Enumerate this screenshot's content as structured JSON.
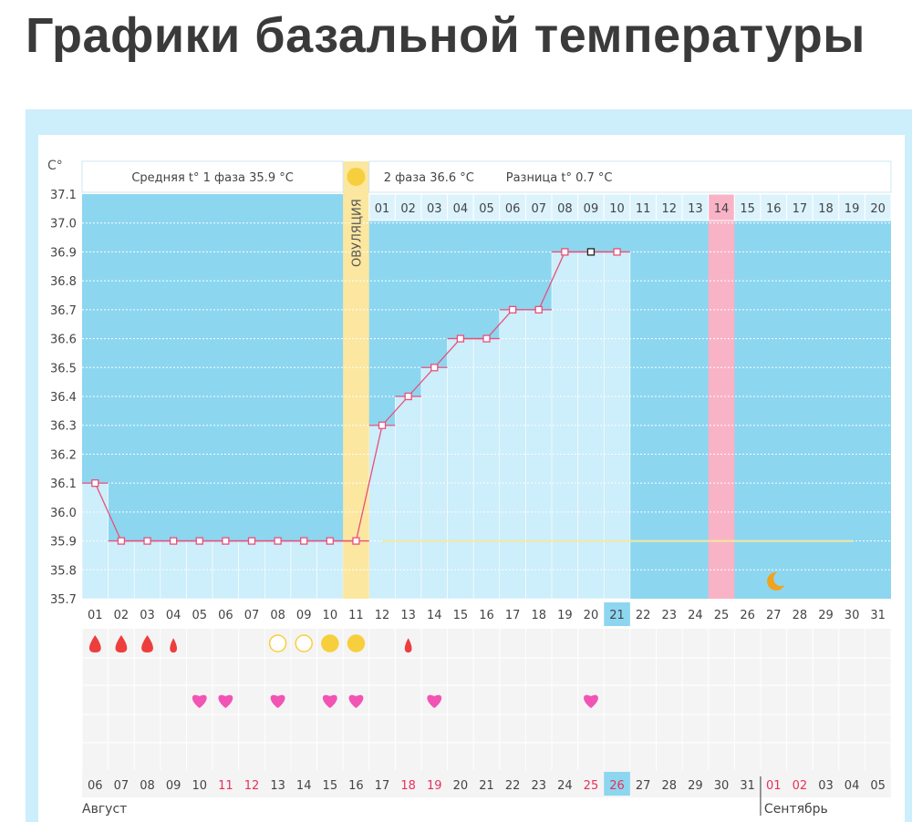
{
  "title": "Графики базальной температуры",
  "header": {
    "phase1": "Средняя t° 1 фаза 35.9 °C",
    "phase2": "2 фаза 36.6 °C",
    "diff": "Разница t° 0.7 °C",
    "ovulation": "ОВУЛЯЦИЯ",
    "unit": "C°"
  },
  "colors": {
    "dark": "#8dd6f0",
    "light": "#cdeefb",
    "line": "#e8507a",
    "ovulation": "#fbe7a0",
    "pink": "#f9b3c6",
    "red": "#ee3d3d",
    "yellow": "#f7cf3c",
    "heart": "#f254b4",
    "weekend": "#e8305a"
  },
  "chart_data": {
    "type": "line",
    "ylabel": "C°",
    "ylim": [
      35.7,
      37.1
    ],
    "yticks": [
      "37.1",
      "37.0",
      "36.9",
      "36.8",
      "36.7",
      "36.6",
      "36.5",
      "36.4",
      "36.3",
      "36.2",
      "36.1",
      "36.0",
      "35.9",
      "35.8",
      "35.7"
    ],
    "cycle_days": [
      "01",
      "02",
      "03",
      "04",
      "05",
      "06",
      "07",
      "08",
      "09",
      "10",
      "11",
      "12",
      "13",
      "14",
      "15",
      "16",
      "17",
      "18",
      "19",
      "20",
      "21",
      "22",
      "23",
      "24",
      "25",
      "26",
      "27",
      "28",
      "29",
      "30",
      "31"
    ],
    "temperatures": [
      36.1,
      35.9,
      35.9,
      35.9,
      35.9,
      35.9,
      35.9,
      35.9,
      35.9,
      35.9,
      35.9,
      36.3,
      36.4,
      36.5,
      36.6,
      36.6,
      36.7,
      36.7,
      36.9,
      36.9,
      36.9
    ],
    "highlight_point_day": 20,
    "today_cycle_day": "21",
    "ovulation_day": 11,
    "expected_period_day": 25,
    "coverline": 35.9,
    "phase2_days": [
      "01",
      "02",
      "03",
      "04",
      "05",
      "06",
      "07",
      "08",
      "09",
      "10",
      "11",
      "12",
      "13",
      "14",
      "15",
      "16",
      "17",
      "18",
      "19",
      "20"
    ],
    "phase2_marked": "14",
    "dates": [
      "06",
      "07",
      "08",
      "09",
      "10",
      "11",
      "12",
      "13",
      "14",
      "15",
      "16",
      "17",
      "18",
      "19",
      "20",
      "21",
      "22",
      "23",
      "24",
      "25",
      "26",
      "27",
      "28",
      "29",
      "30",
      "31",
      "01",
      "02",
      "03",
      "04",
      "05"
    ],
    "weekend_dates": [
      5,
      6,
      12,
      13,
      19,
      20,
      26,
      27
    ],
    "today_date_index": 20,
    "months": [
      "Август",
      "Сентябрь"
    ],
    "bleeding": {
      "1": "heavy",
      "2": "heavy",
      "3": "heavy",
      "4": "light",
      "13": "light"
    },
    "mucus": {
      "8": "open",
      "9": "open",
      "10": "full",
      "11": "full"
    },
    "hearts": [
      5,
      6,
      8,
      10,
      11,
      14,
      20
    ],
    "moon_day": 27
  }
}
